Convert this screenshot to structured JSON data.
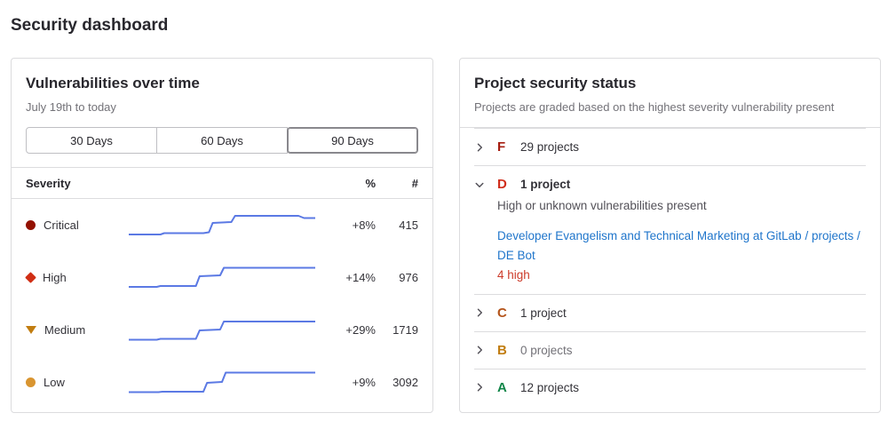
{
  "page": {
    "title": "Security dashboard"
  },
  "vulnerabilities_panel": {
    "title": "Vulnerabilities over time",
    "subtitle": "July 19th to today",
    "time_ranges": [
      {
        "label": "30 Days",
        "selected": false
      },
      {
        "label": "60 Days",
        "selected": false
      },
      {
        "label": "90 Days",
        "selected": true
      }
    ],
    "table": {
      "headers": {
        "severity": "Severity",
        "percent": "%",
        "count": "#"
      },
      "rows": [
        {
          "severity": "Critical",
          "icon": "severity-critical-icon",
          "color": "#931100",
          "percent": "+8%",
          "count": "415"
        },
        {
          "severity": "High",
          "icon": "severity-high-icon",
          "color": "#d02e14",
          "percent": "+14%",
          "count": "976"
        },
        {
          "severity": "Medium",
          "icon": "severity-medium-icon",
          "color": "#c17d10",
          "percent": "+29%",
          "count": "1719"
        },
        {
          "severity": "Low",
          "icon": "severity-low-icon",
          "color": "#d99530",
          "percent": "+9%",
          "count": "3092"
        }
      ]
    }
  },
  "chart_data": {
    "type": "line",
    "title": "Vulnerabilities over time",
    "x_range_label": "July 19th to today",
    "selected_range_days": 90,
    "line_color": "#5b79e4",
    "legend_position": "none",
    "grid": false,
    "series": [
      {
        "name": "Critical",
        "current_count": 415,
        "percent_change": "+8%",
        "spark_points": [
          [
            0,
            29
          ],
          [
            17,
            29
          ],
          [
            19,
            27.5
          ],
          [
            40,
            27.5
          ],
          [
            43,
            26.5
          ],
          [
            45,
            16
          ],
          [
            55,
            15
          ],
          [
            57,
            8
          ],
          [
            91,
            8
          ],
          [
            94,
            10.5
          ],
          [
            100,
            10.5
          ]
        ]
      },
      {
        "name": "High",
        "current_count": 976,
        "percent_change": "+14%",
        "spark_points": [
          [
            0,
            29
          ],
          [
            15,
            29
          ],
          [
            17,
            28
          ],
          [
            36,
            28
          ],
          [
            38,
            17
          ],
          [
            49,
            16
          ],
          [
            51,
            7.5
          ],
          [
            100,
            7.5
          ]
        ]
      },
      {
        "name": "Medium",
        "current_count": 1719,
        "percent_change": "+29%",
        "spark_points": [
          [
            0,
            29.5
          ],
          [
            15,
            29.5
          ],
          [
            17,
            28.5
          ],
          [
            36,
            28.5
          ],
          [
            38,
            19
          ],
          [
            49,
            18
          ],
          [
            51,
            9
          ],
          [
            100,
            9
          ]
        ]
      },
      {
        "name": "Low",
        "current_count": 3092,
        "percent_change": "+9%",
        "spark_points": [
          [
            0,
            29.5
          ],
          [
            16,
            29.5
          ],
          [
            18,
            29
          ],
          [
            40,
            29
          ],
          [
            42,
            19
          ],
          [
            50,
            18
          ],
          [
            52,
            7.5
          ],
          [
            100,
            7.5
          ]
        ]
      }
    ]
  },
  "project_status_panel": {
    "title": "Project security status",
    "subtitle": "Projects are graded based on the highest severity vulnerability present",
    "grades": [
      {
        "letter": "F",
        "color": "#a51d10",
        "count_label": "29 projects",
        "expanded": false
      },
      {
        "letter": "D",
        "color": "#d02e1c",
        "count_label": "1 project",
        "expanded": true,
        "description": "High or unknown vulnerabilities present",
        "project_link": "Developer Evangelism and Technical Marketing at GitLab / projects / DE Bot",
        "badge": "4 high"
      },
      {
        "letter": "C",
        "color": "#b4541b",
        "count_label": "1 project",
        "expanded": false
      },
      {
        "letter": "B",
        "color": "#c17d10",
        "count_label": "0 projects",
        "expanded": false,
        "muted": true
      },
      {
        "letter": "A",
        "color": "#108548",
        "count_label": "12 projects",
        "expanded": false
      }
    ]
  }
}
